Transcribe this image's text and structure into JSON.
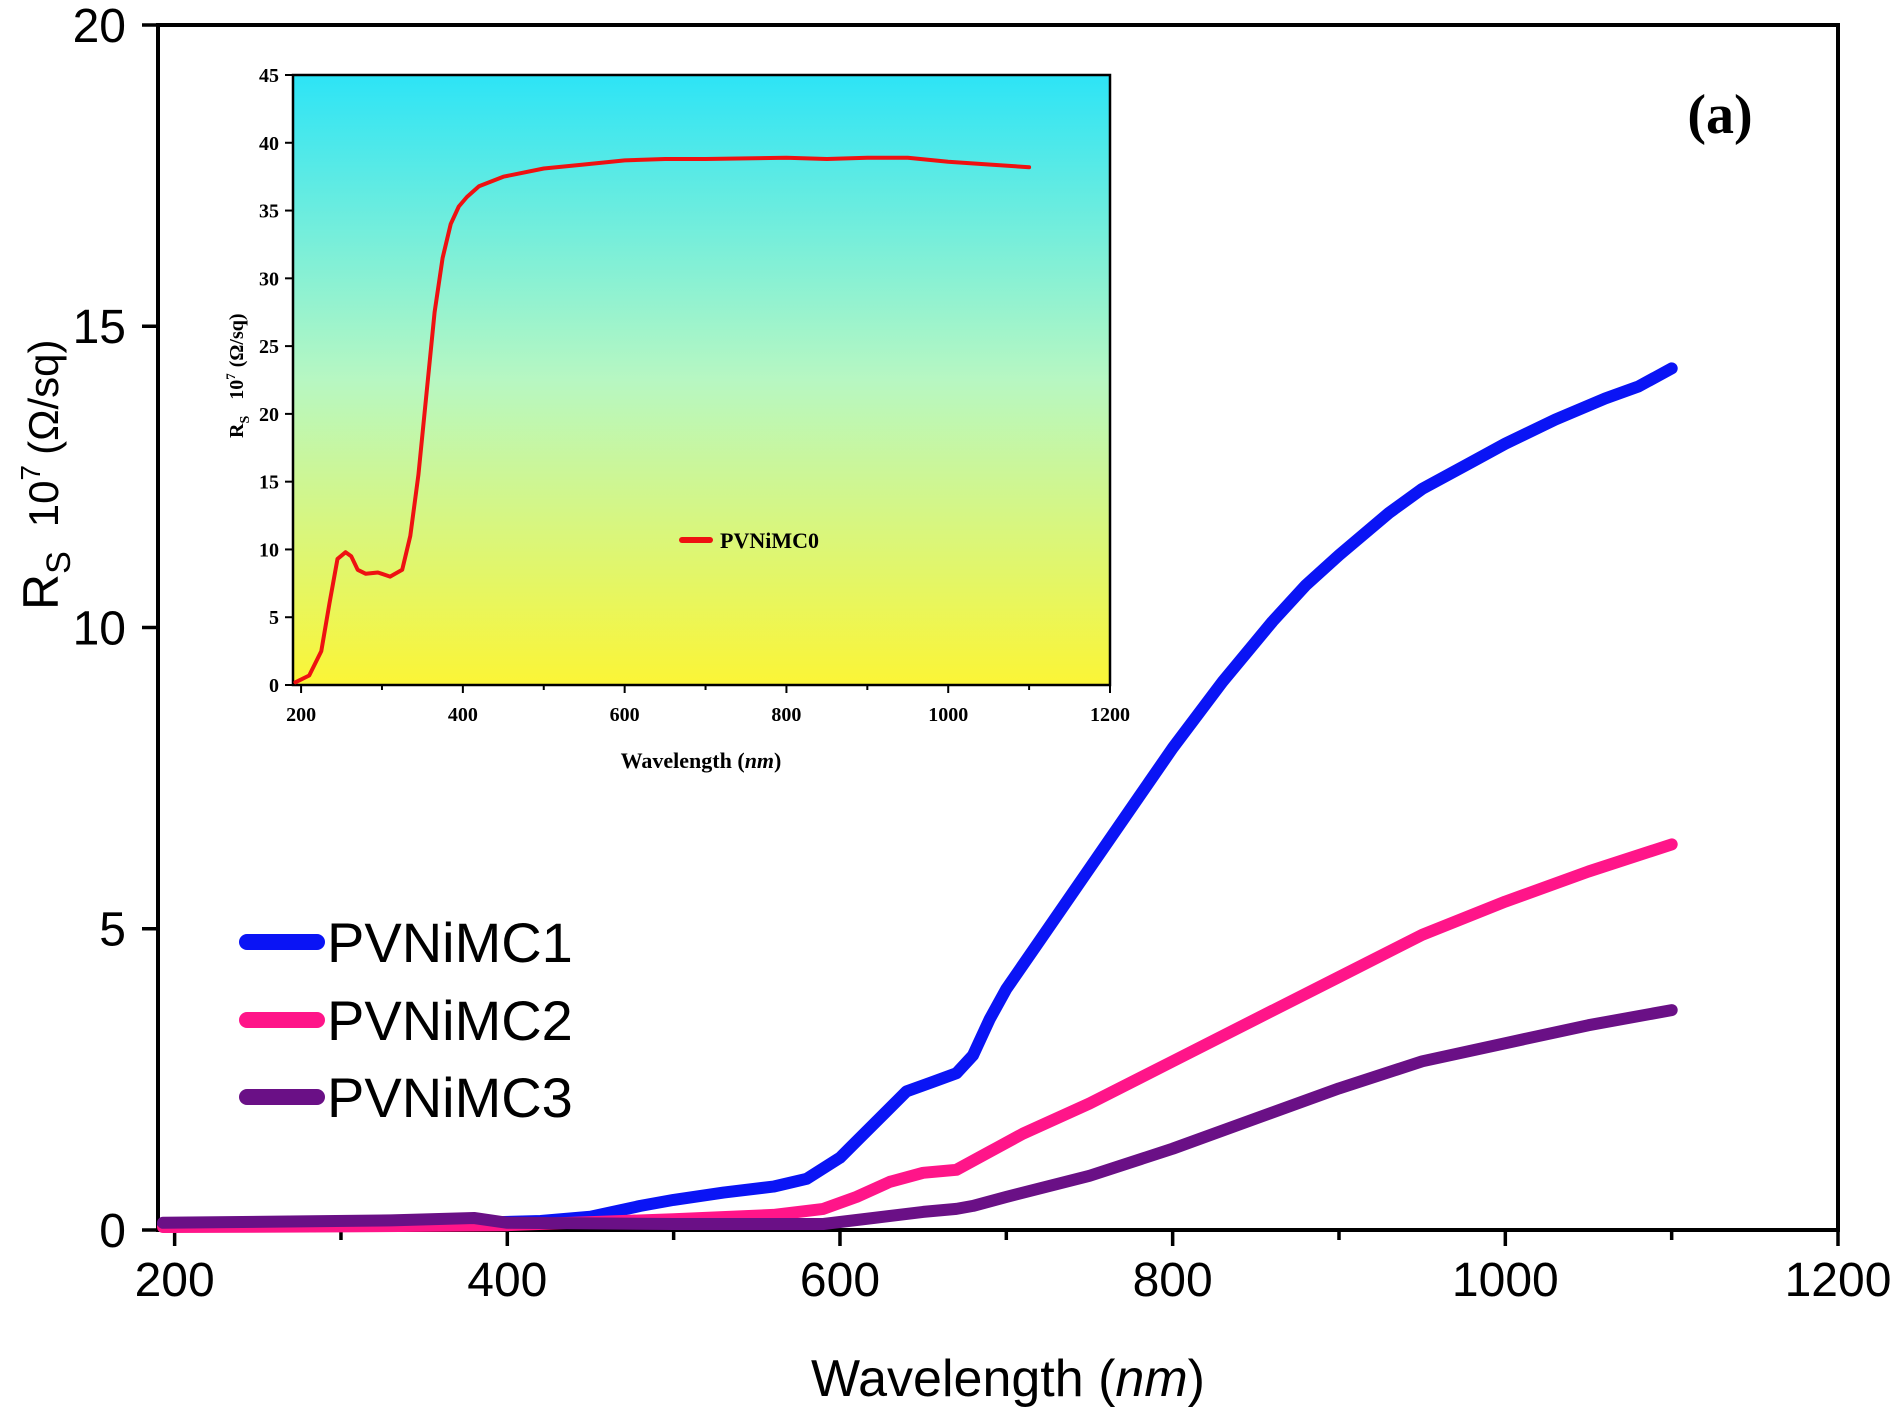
{
  "chart_data": [
    {
      "type": "line",
      "role": "main",
      "panel_label": "(a)",
      "xlabel": "Wavelength",
      "xlabel_unit": "nm",
      "ylabel_main": "R",
      "ylabel_sub": "S",
      "ylabel_factor": "10",
      "ylabel_exp": "7",
      "ylabel_unit": "(Ω/sq)",
      "xlim": [
        190,
        1200
      ],
      "ylim": [
        0,
        20
      ],
      "xticks": [
        200,
        400,
        600,
        800,
        1000,
        1200
      ],
      "yticks": [
        0,
        5,
        10,
        15,
        20
      ],
      "legend_position": "lower-left",
      "series": [
        {
          "name": "PVNiMC1",
          "color": "#0a14f5",
          "x": [
            193,
            300,
            380,
            420,
            450,
            480,
            500,
            530,
            560,
            580,
            600,
            620,
            640,
            655,
            670,
            680,
            690,
            700,
            720,
            750,
            780,
            800,
            830,
            860,
            880,
            900,
            930,
            950,
            980,
            1000,
            1030,
            1060,
            1080,
            1100
          ],
          "y": [
            0.1,
            0.1,
            0.12,
            0.15,
            0.22,
            0.4,
            0.5,
            0.62,
            0.72,
            0.85,
            1.2,
            1.75,
            2.3,
            2.45,
            2.6,
            2.9,
            3.5,
            4.0,
            4.8,
            6.0,
            7.2,
            8.0,
            9.1,
            10.1,
            10.7,
            11.2,
            11.9,
            12.3,
            12.75,
            13.05,
            13.45,
            13.8,
            14.0,
            14.3
          ]
        },
        {
          "name": "PVNiMC2",
          "color": "#ff1589",
          "x": [
            193,
            300,
            400,
            500,
            560,
            590,
            610,
            630,
            650,
            670,
            690,
            710,
            750,
            800,
            850,
            900,
            950,
            1000,
            1050,
            1100
          ],
          "y": [
            0.05,
            0.06,
            0.08,
            0.18,
            0.25,
            0.35,
            0.55,
            0.8,
            0.95,
            1.0,
            1.3,
            1.6,
            2.1,
            2.8,
            3.5,
            4.2,
            4.9,
            5.45,
            5.95,
            6.4
          ]
        },
        {
          "name": "PVNiMC3",
          "color": "#6a1086",
          "x": [
            193,
            330,
            380,
            400,
            500,
            590,
            620,
            650,
            670,
            680,
            700,
            750,
            800,
            850,
            900,
            950,
            1000,
            1050,
            1100
          ],
          "y": [
            0.12,
            0.16,
            0.2,
            0.12,
            0.1,
            0.1,
            0.2,
            0.3,
            0.35,
            0.4,
            0.55,
            0.9,
            1.35,
            1.85,
            2.35,
            2.8,
            3.1,
            3.4,
            3.65
          ]
        }
      ]
    },
    {
      "type": "line",
      "role": "inset",
      "xlabel": "Wavelength",
      "xlabel_unit": "nm",
      "ylabel_main": "R",
      "ylabel_sub": "S",
      "ylabel_factor": "10",
      "ylabel_exp": "7",
      "ylabel_unit": "(Ω/sq)",
      "xlim": [
        190,
        1200
      ],
      "ylim": [
        0,
        45
      ],
      "xticks": [
        200,
        400,
        600,
        800,
        1000,
        1200
      ],
      "yticks": [
        0,
        5,
        10,
        15,
        20,
        25,
        30,
        35,
        40,
        45
      ],
      "legend_position": "lower-center",
      "series": [
        {
          "name": "PVNiMC0",
          "color": "#ee1111",
          "x": [
            193,
            210,
            225,
            235,
            245,
            255,
            262,
            270,
            280,
            295,
            310,
            325,
            335,
            345,
            355,
            365,
            375,
            385,
            395,
            405,
            420,
            450,
            500,
            550,
            600,
            650,
            700,
            800,
            850,
            900,
            950,
            1000,
            1050,
            1100
          ],
          "y": [
            0.2,
            0.7,
            2.5,
            6.0,
            9.3,
            9.8,
            9.5,
            8.5,
            8.2,
            8.3,
            8.0,
            8.5,
            11.0,
            15.5,
            21.5,
            27.5,
            31.5,
            34.0,
            35.3,
            36.0,
            36.8,
            37.5,
            38.1,
            38.4,
            38.7,
            38.8,
            38.8,
            38.9,
            38.8,
            38.9,
            38.9,
            38.6,
            38.4,
            38.2
          ]
        }
      ]
    }
  ]
}
